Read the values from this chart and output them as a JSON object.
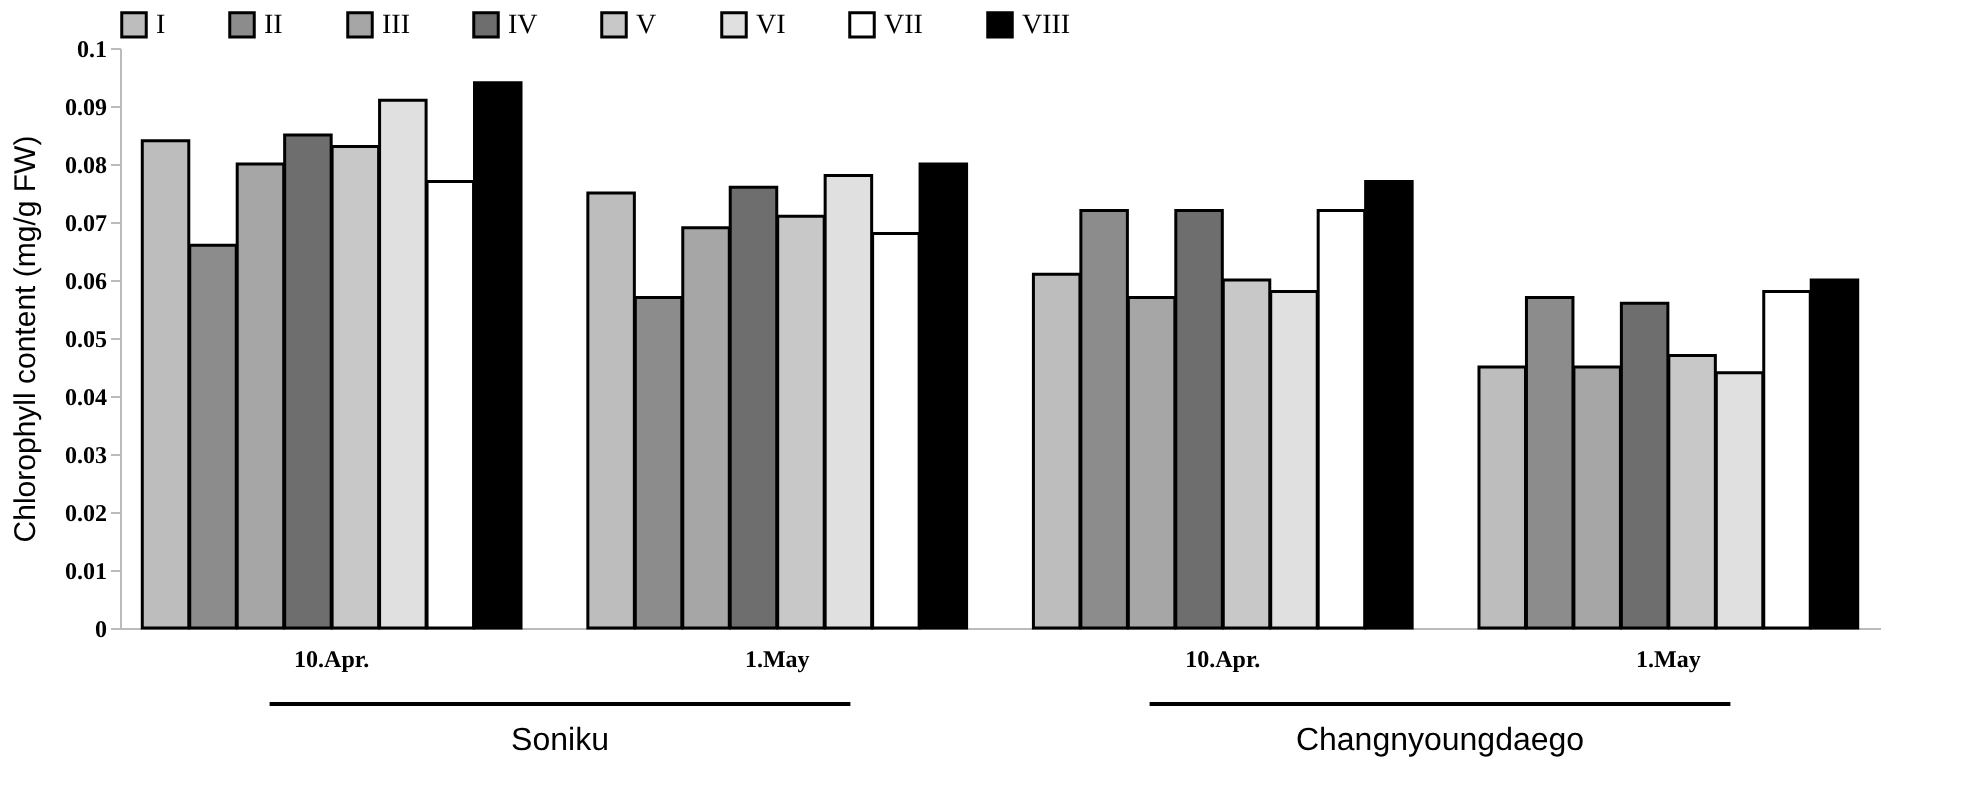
{
  "chart_data": {
    "type": "bar",
    "ylabel": "Chlorophyll content (mg/g FW)",
    "categories": [
      "10.Apr.",
      "1.May",
      "10.Apr.",
      "1.May"
    ],
    "series": [
      {
        "name": "I",
        "color": "#bdbdbd",
        "values": [
          0.084,
          0.075,
          0.061,
          0.045
        ]
      },
      {
        "name": "II",
        "color": "#8c8c8c",
        "values": [
          0.066,
          0.057,
          0.072,
          0.057
        ]
      },
      {
        "name": "III",
        "color": "#a6a6a6",
        "values": [
          0.08,
          0.069,
          0.057,
          0.045
        ]
      },
      {
        "name": "IV",
        "color": "#6e6e6e",
        "values": [
          0.085,
          0.076,
          0.072,
          0.056
        ]
      },
      {
        "name": "V",
        "color": "#c8c8c8",
        "values": [
          0.083,
          0.071,
          0.06,
          0.047
        ]
      },
      {
        "name": "VI",
        "color": "#e0e0e0",
        "values": [
          0.091,
          0.078,
          0.058,
          0.044
        ]
      },
      {
        "name": "VII",
        "color": "#ffffff",
        "values": [
          0.077,
          0.068,
          0.072,
          0.058
        ]
      },
      {
        "name": "VIII",
        "color": "#000000",
        "values": [
          0.094,
          0.08,
          0.077,
          0.06
        ]
      }
    ],
    "ylim": [
      0,
      0.1
    ],
    "yticks": [
      0,
      0.01,
      0.02,
      0.03,
      0.04,
      0.05,
      0.06,
      0.07,
      0.08,
      0.09,
      0.1
    ],
    "legend": "top",
    "grid": false,
    "annotations": [
      "Soniku",
      "Changnyoungdaego"
    ]
  }
}
